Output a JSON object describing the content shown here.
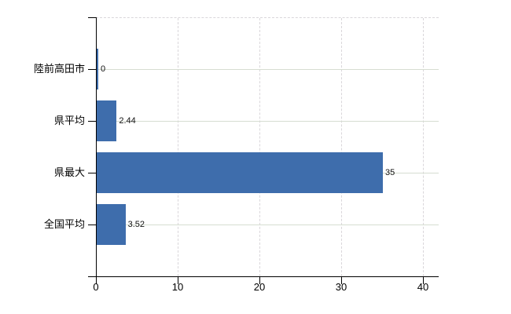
{
  "chart_data": {
    "type": "bar",
    "orientation": "horizontal",
    "title": "",
    "xlabel": "",
    "ylabel": "",
    "categories": [
      "陸前高田市",
      "県平均",
      "県最大",
      "全国平均"
    ],
    "values": [
      0,
      2.44,
      35,
      3.52
    ],
    "value_labels": [
      "0",
      "2.44",
      "35",
      "3.52"
    ],
    "x_ticks": [
      0,
      10,
      20,
      30,
      40
    ],
    "x_tick_labels": [
      "0",
      "10",
      "20",
      "30",
      "40"
    ],
    "xlim": [
      0,
      41.9
    ],
    "grid": true,
    "legend": false,
    "bar_color": "#3e6dac",
    "h_grid_color": "#d6ddd1",
    "v_grid_color": "#d9d6da",
    "axis_color": "#000000",
    "background_color": "#ffffff"
  }
}
